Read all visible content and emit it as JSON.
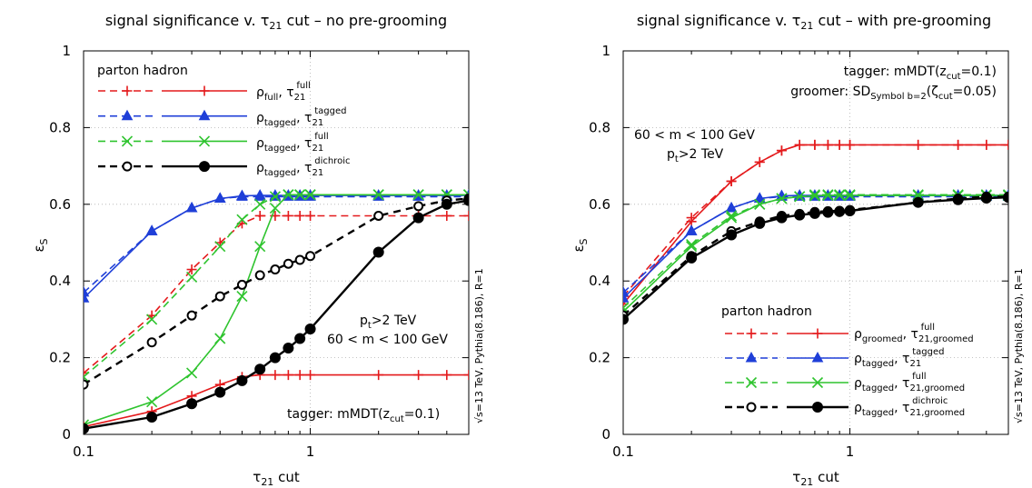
{
  "chart_data": [
    {
      "type": "line",
      "title": "signal significance v. τ21 cut – no pre-grooming",
      "xlabel": "τ21 cut",
      "ylabel": "εS",
      "xscale": "log",
      "xlim": [
        0.1,
        5
      ],
      "ylim": [
        0,
        1
      ],
      "xticks": [
        "0.1",
        "1"
      ],
      "yticks": [
        "0",
        "0.2",
        "0.4",
        "0.6",
        "0.8",
        "1"
      ],
      "grid": true,
      "legend_header": "parton hadron",
      "legend_position": "top-left",
      "annotations": [
        "pt>2 TeV",
        "60 < m < 100 GeV",
        "tagger: mMDT(zcut=0.1)",
        "√s=13 TeV, Pythia(8.186), R=1"
      ],
      "x": [
        0.1,
        0.2,
        0.3,
        0.4,
        0.5,
        0.6,
        0.7,
        0.8,
        0.9,
        1,
        2,
        3,
        4,
        5
      ],
      "series": [
        {
          "name": "ρfull, τ21full",
          "level": "parton",
          "color": "#e41a1c",
          "marker": "plus",
          "values": [
            0.16,
            0.31,
            0.43,
            0.5,
            0.55,
            0.57,
            0.57,
            0.57,
            0.57,
            0.57,
            0.57,
            0.57,
            0.57,
            0.57
          ]
        },
        {
          "name": "ρfull, τ21full",
          "level": "hadron",
          "color": "#e41a1c",
          "marker": "plus",
          "values": [
            0.02,
            0.06,
            0.1,
            0.13,
            0.15,
            0.155,
            0.155,
            0.155,
            0.155,
            0.155,
            0.155,
            0.155,
            0.155,
            0.155
          ]
        },
        {
          "name": "ρtagged, τ21tagged",
          "level": "parton",
          "color": "#1f3fd8",
          "marker": "triangle",
          "values": [
            0.37,
            0.53,
            0.59,
            0.615,
            0.62,
            0.62,
            0.62,
            0.62,
            0.62,
            0.62,
            0.62,
            0.62,
            0.62,
            0.62
          ]
        },
        {
          "name": "ρtagged, τ21tagged",
          "level": "hadron",
          "color": "#1f3fd8",
          "marker": "triangle",
          "values": [
            0.355,
            0.53,
            0.59,
            0.615,
            0.622,
            0.623,
            0.623,
            0.623,
            0.623,
            0.623,
            0.623,
            0.623,
            0.623,
            0.623
          ]
        },
        {
          "name": "ρtagged, τ21full",
          "level": "parton",
          "color": "#2fc42f",
          "marker": "cross",
          "values": [
            0.15,
            0.3,
            0.41,
            0.49,
            0.56,
            0.6,
            0.62,
            0.625,
            0.625,
            0.625,
            0.625,
            0.625,
            0.625,
            0.625
          ]
        },
        {
          "name": "ρtagged, τ21full",
          "level": "hadron",
          "color": "#2fc42f",
          "marker": "cross",
          "values": [
            0.025,
            0.085,
            0.16,
            0.25,
            0.36,
            0.49,
            0.59,
            0.625,
            0.625,
            0.625,
            0.625,
            0.625,
            0.625,
            0.625
          ]
        },
        {
          "name": "ρtagged, τ21dichroic",
          "level": "parton",
          "color": "#000000",
          "marker": "circle-open",
          "values": [
            0.13,
            0.24,
            0.31,
            0.36,
            0.39,
            0.415,
            0.43,
            0.445,
            0.455,
            0.465,
            0.57,
            0.595,
            0.61,
            0.615
          ]
        },
        {
          "name": "ρtagged, τ21dichroic",
          "level": "hadron",
          "color": "#000000",
          "marker": "circle-filled",
          "values": [
            0.015,
            0.045,
            0.08,
            0.11,
            0.14,
            0.17,
            0.2,
            0.225,
            0.25,
            0.275,
            0.475,
            0.565,
            0.6,
            0.61
          ]
        }
      ]
    },
    {
      "type": "line",
      "title": "signal significance v. τ21 cut – with pre-grooming",
      "xlabel": "τ21 cut",
      "ylabel": "εS",
      "xscale": "log",
      "xlim": [
        0.1,
        5
      ],
      "ylim": [
        0,
        1
      ],
      "xticks": [
        "0.1",
        "1"
      ],
      "yticks": [
        "0",
        "0.2",
        "0.4",
        "0.6",
        "0.8",
        "1"
      ],
      "grid": true,
      "legend_header": "parton  hadron",
      "legend_position": "bottom-right",
      "annotations": [
        "tagger: mMDT(zcut=0.1)",
        "groomer: SDSymbol b=2(ζcut=0.05)",
        "60 < m < 100 GeV",
        "pt>2 TeV",
        "√s=13 TeV, Pythia(8.186), R=1"
      ],
      "x": [
        0.1,
        0.2,
        0.3,
        0.4,
        0.5,
        0.6,
        0.7,
        0.8,
        0.9,
        1,
        2,
        3,
        4,
        5
      ],
      "series": [
        {
          "name": "ρgroomed, τ21,groomedfull",
          "level": "parton",
          "color": "#e41a1c",
          "marker": "plus",
          "values": [
            0.36,
            0.565,
            0.66,
            0.71,
            0.74,
            0.755,
            0.755,
            0.755,
            0.755,
            0.755,
            0.755,
            0.755,
            0.755,
            0.755
          ]
        },
        {
          "name": "ρgroomed, τ21,groomedfull",
          "level": "hadron",
          "color": "#e41a1c",
          "marker": "plus",
          "values": [
            0.34,
            0.555,
            0.66,
            0.71,
            0.74,
            0.755,
            0.755,
            0.755,
            0.755,
            0.755,
            0.755,
            0.755,
            0.755,
            0.755
          ]
        },
        {
          "name": "ρtagged, τ21tagged",
          "level": "parton",
          "color": "#1f3fd8",
          "marker": "triangle",
          "values": [
            0.37,
            0.53,
            0.59,
            0.615,
            0.62,
            0.62,
            0.62,
            0.62,
            0.62,
            0.62,
            0.62,
            0.62,
            0.62,
            0.62
          ]
        },
        {
          "name": "ρtagged, τ21tagged",
          "level": "hadron",
          "color": "#1f3fd8",
          "marker": "triangle",
          "values": [
            0.355,
            0.53,
            0.59,
            0.615,
            0.622,
            0.623,
            0.623,
            0.623,
            0.623,
            0.623,
            0.623,
            0.623,
            0.623,
            0.623
          ]
        },
        {
          "name": "ρtagged, τ21,groomedfull",
          "level": "parton",
          "color": "#2fc42f",
          "marker": "cross",
          "values": [
            0.33,
            0.495,
            0.57,
            0.6,
            0.615,
            0.62,
            0.625,
            0.625,
            0.625,
            0.625,
            0.625,
            0.625,
            0.625,
            0.625
          ]
        },
        {
          "name": "ρtagged, τ21,groomedfull",
          "level": "hadron",
          "color": "#2fc42f",
          "marker": "cross",
          "values": [
            0.32,
            0.49,
            0.565,
            0.6,
            0.615,
            0.62,
            0.622,
            0.623,
            0.623,
            0.623,
            0.623,
            0.623,
            0.623,
            0.623
          ]
        },
        {
          "name": "ρtagged, τ21,groomeddichroic",
          "level": "parton",
          "color": "#000000",
          "marker": "circle-open",
          "values": [
            0.31,
            0.465,
            0.53,
            0.555,
            0.57,
            0.575,
            0.58,
            0.582,
            0.583,
            0.585,
            0.605,
            0.615,
            0.62,
            0.62
          ]
        },
        {
          "name": "ρtagged, τ21,groomeddichroic",
          "level": "hadron",
          "color": "#000000",
          "marker": "circle-filled",
          "values": [
            0.3,
            0.46,
            0.52,
            0.55,
            0.565,
            0.572,
            0.576,
            0.579,
            0.581,
            0.583,
            0.605,
            0.612,
            0.616,
            0.618
          ]
        }
      ]
    }
  ]
}
